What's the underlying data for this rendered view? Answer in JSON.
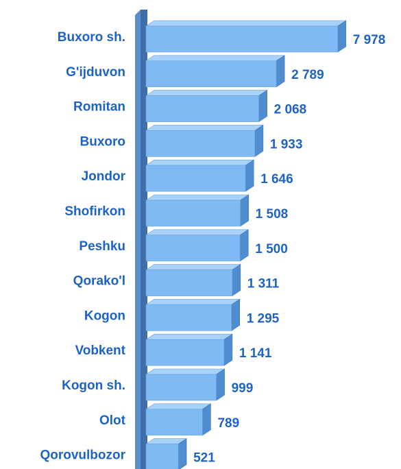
{
  "chart_data": {
    "type": "hbar3d",
    "categories": [
      "Buxoro sh.",
      "G'ijduvon",
      "Romitan",
      "Buxoro",
      "Jondor",
      "Shofirkon",
      "Peshku",
      "Qorako'l",
      "Kogon",
      "Vobkent",
      "Kogon sh.",
      "Olot",
      "Qorovulbozor"
    ],
    "values": [
      7978,
      2789,
      2068,
      1933,
      1646,
      1508,
      1500,
      1311,
      1295,
      1141,
      999,
      789,
      521
    ],
    "value_labels": [
      "7 978",
      "2 789",
      "2 068",
      "1 933",
      "1 646",
      "1 508",
      "1 500",
      "1 311",
      "1 295",
      "1 141",
      "999",
      "789",
      "521"
    ],
    "color": "#7fbaf5",
    "xscale": "log",
    "xlim": [
      300,
      9000
    ]
  }
}
